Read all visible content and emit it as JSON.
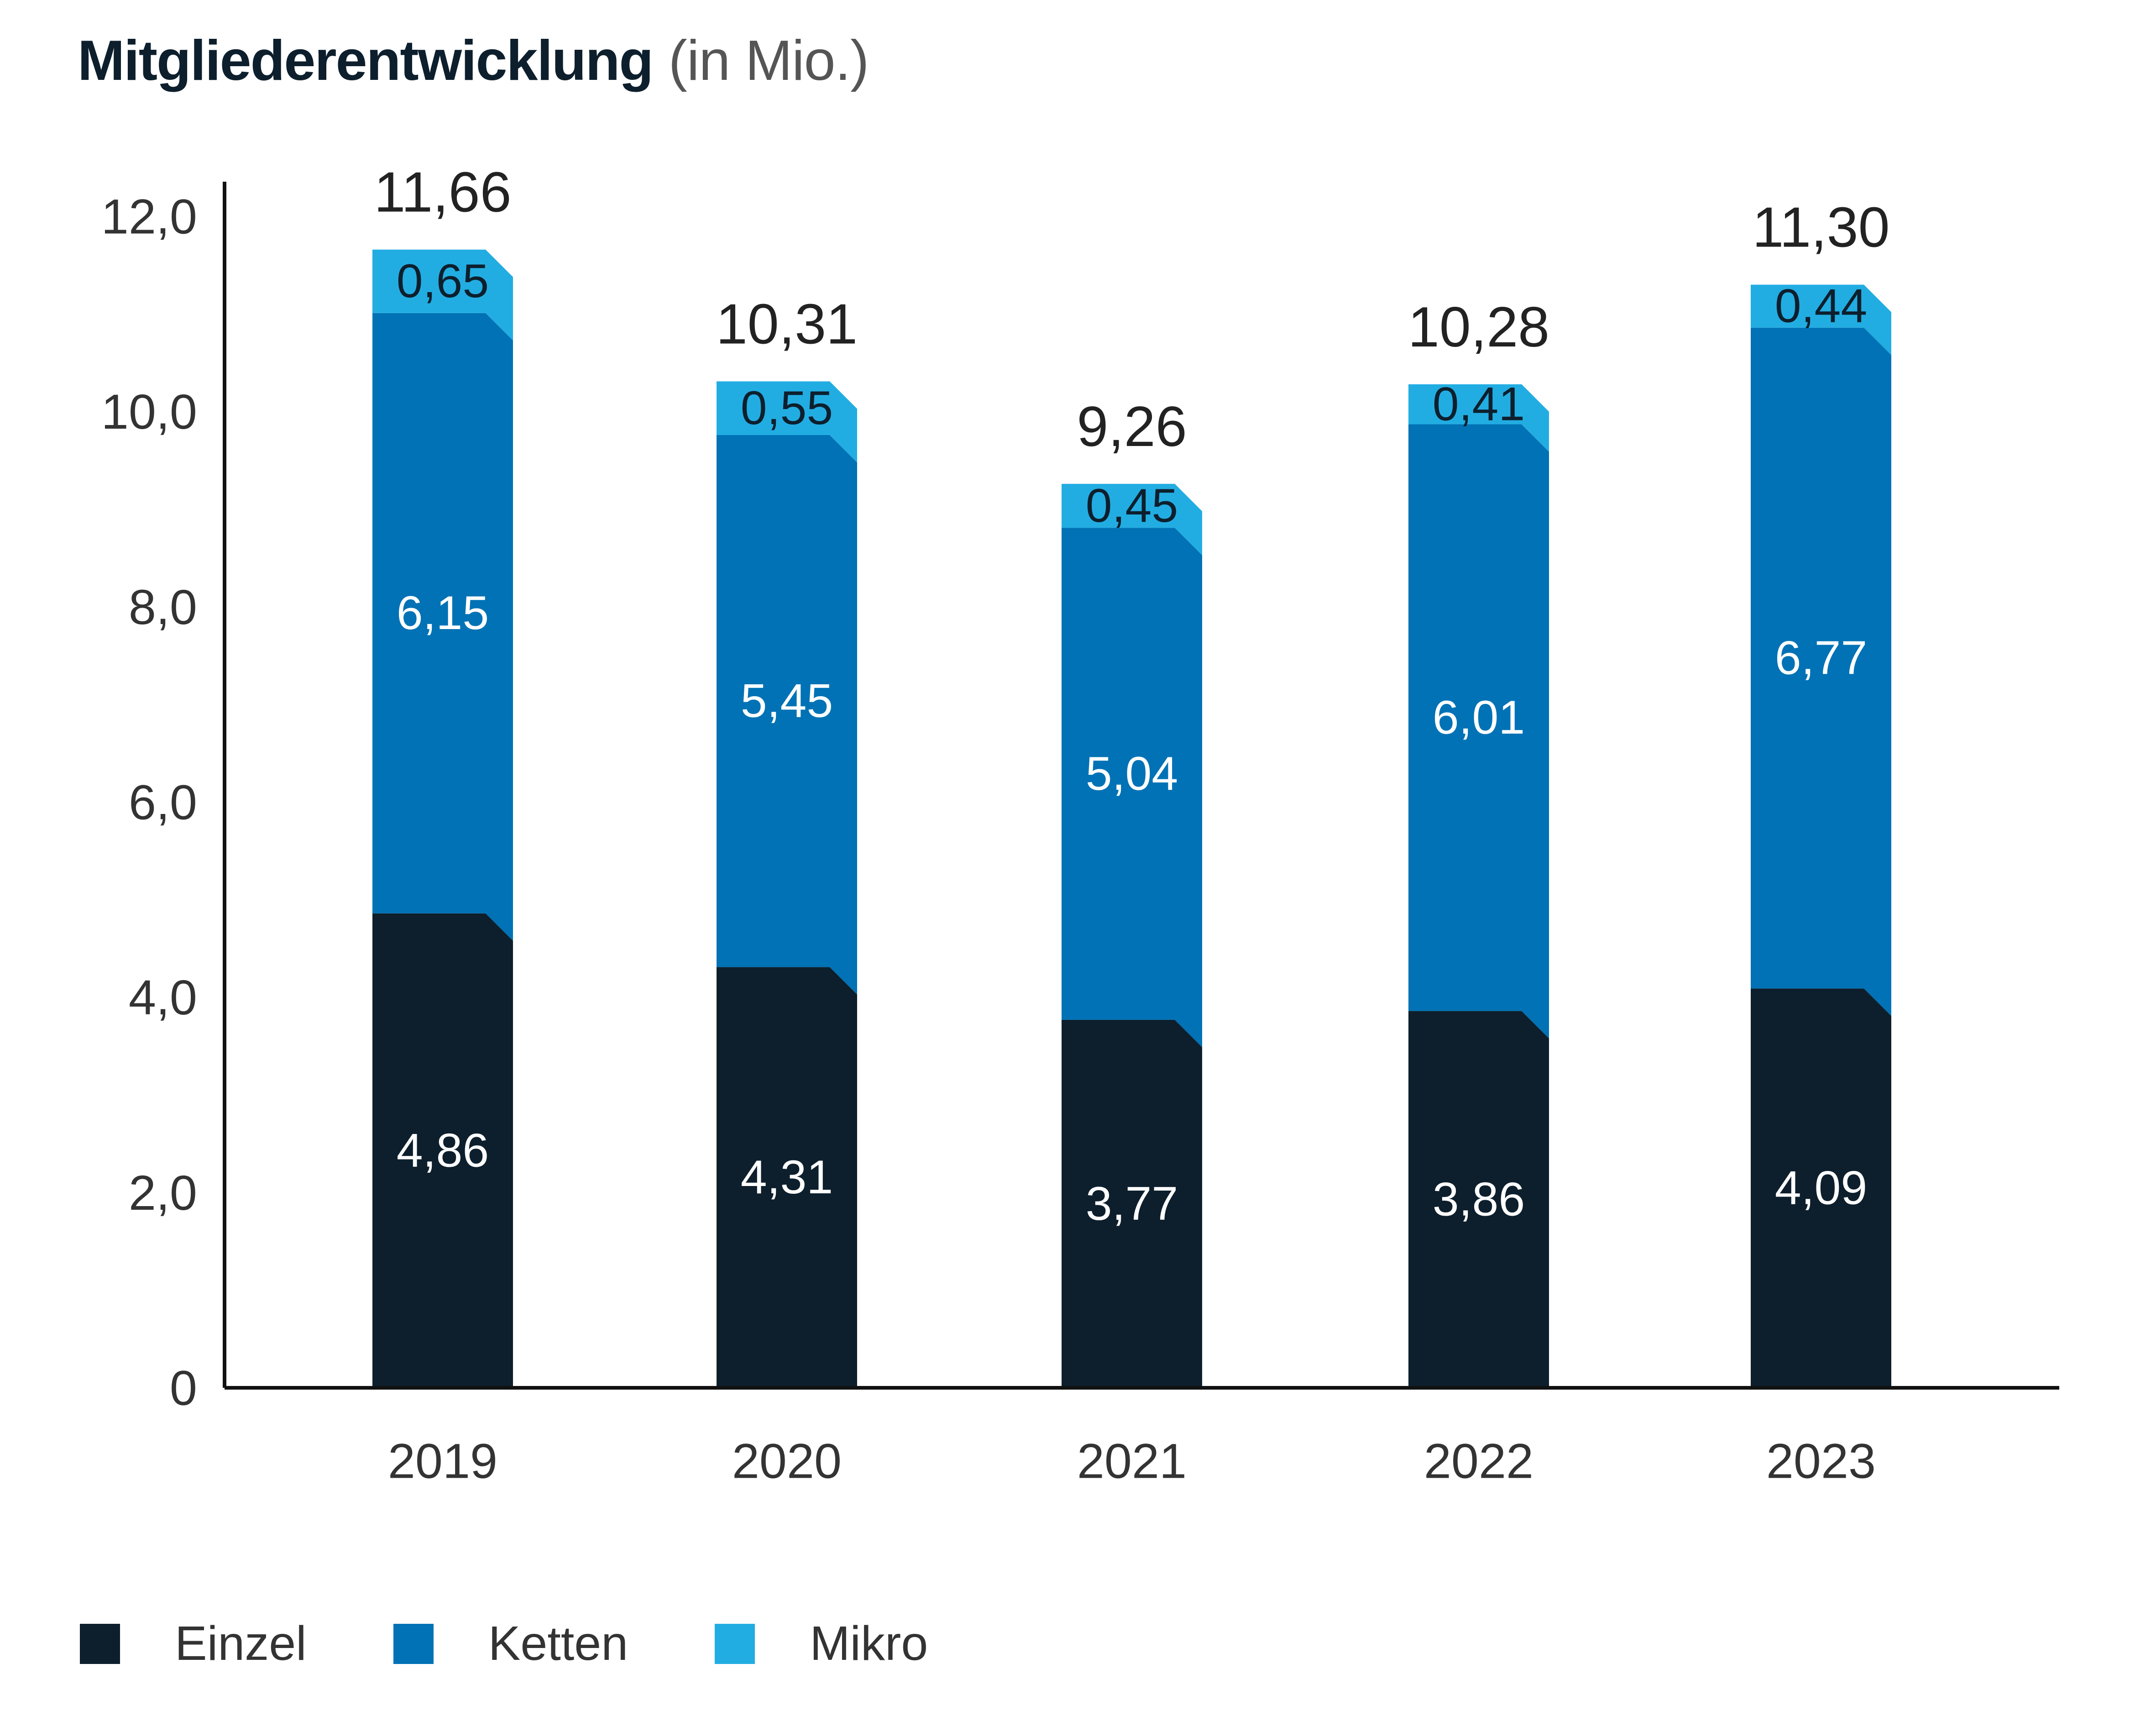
{
  "title": {
    "main": "Mitgliederentwicklung",
    "sub": "(in Mio.)"
  },
  "colors": {
    "Einzel": "#0d1f2d",
    "Ketten": "#0072b5",
    "Mikro": "#22ade2",
    "axis": "#111111",
    "tick_text": "#333333",
    "total_text": "#222222"
  },
  "chart_data": {
    "type": "bar",
    "stacked": true,
    "title": "Mitgliederentwicklung (in Mio.)",
    "xlabel": "",
    "ylabel": "",
    "categories": [
      "2019",
      "2020",
      "2021",
      "2022",
      "2023"
    ],
    "series": [
      {
        "name": "Einzel",
        "values": [
          4.86,
          4.31,
          3.77,
          3.86,
          4.09
        ],
        "labels": [
          "4,86",
          "4,31",
          "3,77",
          "3,86",
          "4,09"
        ]
      },
      {
        "name": "Ketten",
        "values": [
          6.15,
          5.45,
          5.04,
          6.01,
          6.77
        ],
        "labels": [
          "6,15",
          "5,45",
          "5,04",
          "6,01",
          "6,77"
        ]
      },
      {
        "name": "Mikro",
        "values": [
          0.65,
          0.55,
          0.45,
          0.41,
          0.44
        ],
        "labels": [
          "0,65",
          "0,55",
          "0,45",
          "0,41",
          "0,44"
        ]
      }
    ],
    "totals": [
      "11,66",
      "10,31",
      "9,26",
      "10,28",
      "11,30"
    ],
    "ylim": [
      0,
      12
    ],
    "yticks": [
      "0",
      "2,0",
      "4,0",
      "6,0",
      "8,0",
      "10,0",
      "12,0"
    ],
    "grid": false,
    "legend_position": "bottom-left"
  },
  "legend": [
    {
      "label": "Einzel",
      "color": "#0d1f2d"
    },
    {
      "label": "Ketten",
      "color": "#0072b5"
    },
    {
      "label": "Mikro",
      "color": "#22ade2"
    }
  ]
}
